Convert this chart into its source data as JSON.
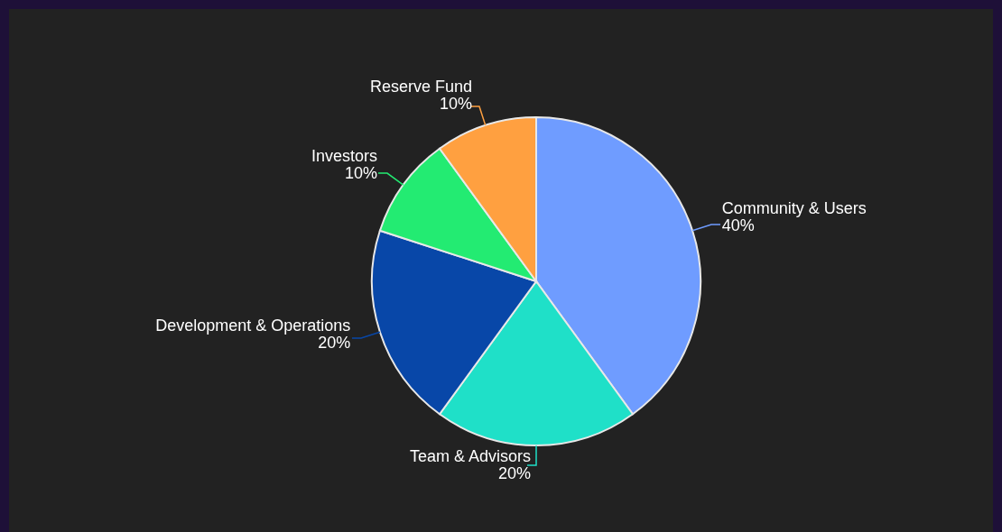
{
  "chart_data": {
    "type": "pie",
    "categories": [
      "Community & Users",
      "Team & Advisors",
      "Development & Operations",
      "Investors",
      "Reserve Fund"
    ],
    "values": [
      40,
      20,
      20,
      10,
      10
    ],
    "value_labels": [
      "40%",
      "20%",
      "20%",
      "10%",
      "10%"
    ],
    "colors": [
      "#6f9cff",
      "#1fe0c8",
      "#0847a8",
      "#23eb72",
      "#ffa040"
    ]
  }
}
